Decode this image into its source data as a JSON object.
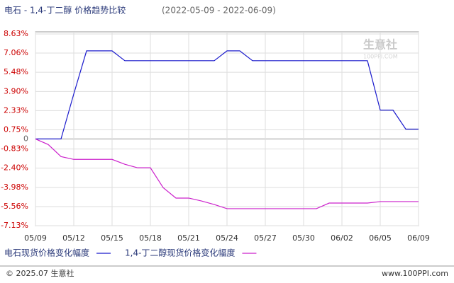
{
  "chart_data": {
    "type": "line",
    "title": "电石 - 1,4-丁二醇 价格趋势比较",
    "subtitle": "(2022-05-09 - 2022-06-09)",
    "categories": [
      "05/09",
      null,
      null,
      "05/12",
      null,
      null,
      "05/15",
      null,
      null,
      "05/18",
      null,
      null,
      "05/21",
      null,
      null,
      "05/24",
      null,
      null,
      "05/27",
      null,
      null,
      "05/30",
      null,
      null,
      "06/02",
      null,
      null,
      "06/05",
      null,
      null,
      "06/09"
    ],
    "series": [
      {
        "name": "电石现货价格变化幅度",
        "color": "#1a1acc",
        "values": [
          0,
          0,
          0,
          3.7,
          7.24,
          7.24,
          7.24,
          6.43,
          6.43,
          6.43,
          6.43,
          6.43,
          6.43,
          6.43,
          6.43,
          7.24,
          7.24,
          6.43,
          6.43,
          6.43,
          6.43,
          6.43,
          6.43,
          6.43,
          6.43,
          6.43,
          6.43,
          2.37,
          2.37,
          0.81,
          0.81
        ]
      },
      {
        "name": "1,4-丁二醇现货价格变化幅度",
        "color": "#cc22cc",
        "values": [
          0,
          -0.46,
          -1.45,
          -1.68,
          -1.68,
          -1.68,
          -1.68,
          -2.08,
          -2.37,
          -2.37,
          -4.0,
          -4.86,
          -4.86,
          -5.1,
          -5.39,
          -5.73,
          -5.73,
          -5.73,
          -5.73,
          -5.73,
          -5.73,
          -5.73,
          -5.73,
          -5.27,
          -5.27,
          -5.27,
          -5.27,
          -5.15,
          -5.15,
          -5.15,
          -5.15
        ]
      }
    ],
    "ylim": [
      -7.13,
      8.63
    ],
    "yticks": [
      {
        "value": 8.63,
        "label": "8.63%"
      },
      {
        "value": 7.06,
        "label": "7.06%"
      },
      {
        "value": 5.48,
        "label": "5.48%"
      },
      {
        "value": 3.9,
        "label": "3.90%"
      },
      {
        "value": 2.33,
        "label": "2.33%"
      },
      {
        "value": 0.75,
        "label": "0.75%"
      },
      0,
      {
        "value": -0.83,
        "label": "-0.83%"
      },
      {
        "value": -2.4,
        "label": "-2.40%"
      },
      {
        "value": -3.98,
        "label": "-3.98%"
      },
      {
        "value": -5.56,
        "label": "-5.56%"
      },
      {
        "value": -7.13,
        "label": "-7.13%"
      }
    ],
    "grid": true,
    "watermark": "生意社",
    "watermark_url": "100PPI.COM",
    "footer_left": "© 2025.07 生意社",
    "footer_right": "www.100PPI.com"
  }
}
